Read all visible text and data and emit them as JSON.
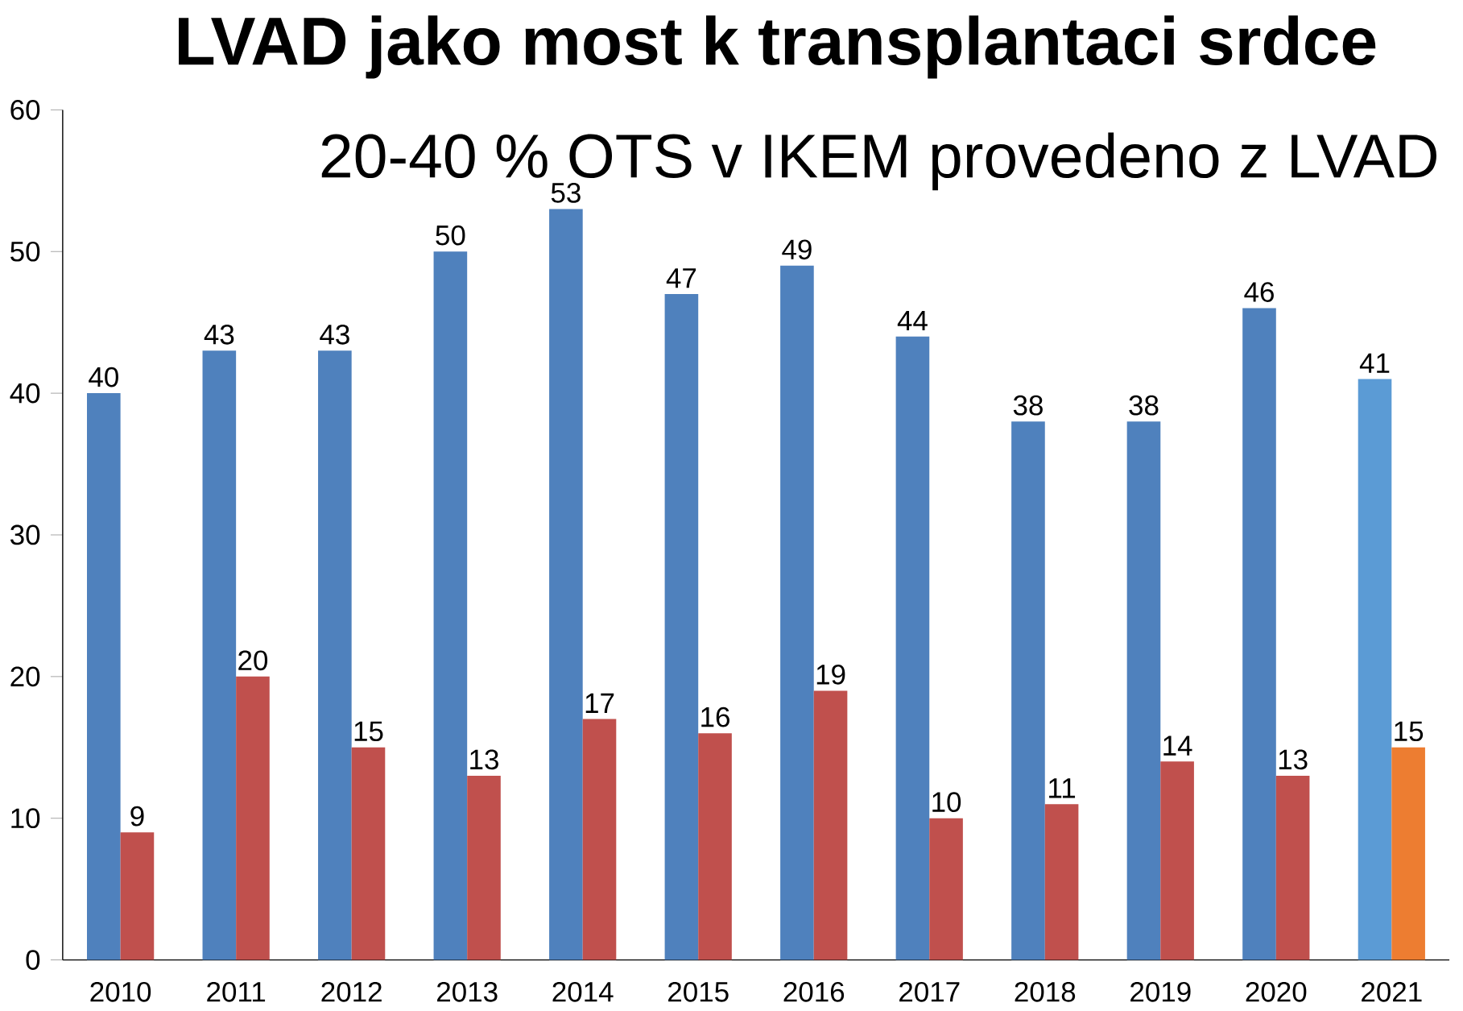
{
  "chart_data": {
    "type": "bar",
    "title": "LVAD jako most k transplantaci srdce",
    "subtitle": "20-40 %  OTS v IKEM provedeno z LVAD",
    "categories": [
      "2010",
      "2011",
      "2012",
      "2013",
      "2014",
      "2015",
      "2016",
      "2017",
      "2018",
      "2019",
      "2020",
      "2021"
    ],
    "series": [
      {
        "colors": [
          "#4f81bd",
          "#4f81bd",
          "#4f81bd",
          "#4f81bd",
          "#4f81bd",
          "#4f81bd",
          "#4f81bd",
          "#4f81bd",
          "#4f81bd",
          "#4f81bd",
          "#4f81bd",
          "#5b9bd5"
        ],
        "values": [
          40,
          43,
          43,
          50,
          53,
          47,
          49,
          44,
          38,
          38,
          46,
          41
        ]
      },
      {
        "colors": [
          "#c0504d",
          "#c0504d",
          "#c0504d",
          "#c0504d",
          "#c0504d",
          "#c0504d",
          "#c0504d",
          "#c0504d",
          "#c0504d",
          "#c0504d",
          "#c0504d",
          "#ed7d31"
        ],
        "values": [
          9,
          20,
          15,
          13,
          17,
          16,
          19,
          10,
          11,
          14,
          13,
          15
        ]
      }
    ],
    "ylim": [
      0,
      60
    ],
    "yticks": [
      0,
      10,
      20,
      30,
      40,
      50,
      60
    ],
    "data_labels": true
  }
}
